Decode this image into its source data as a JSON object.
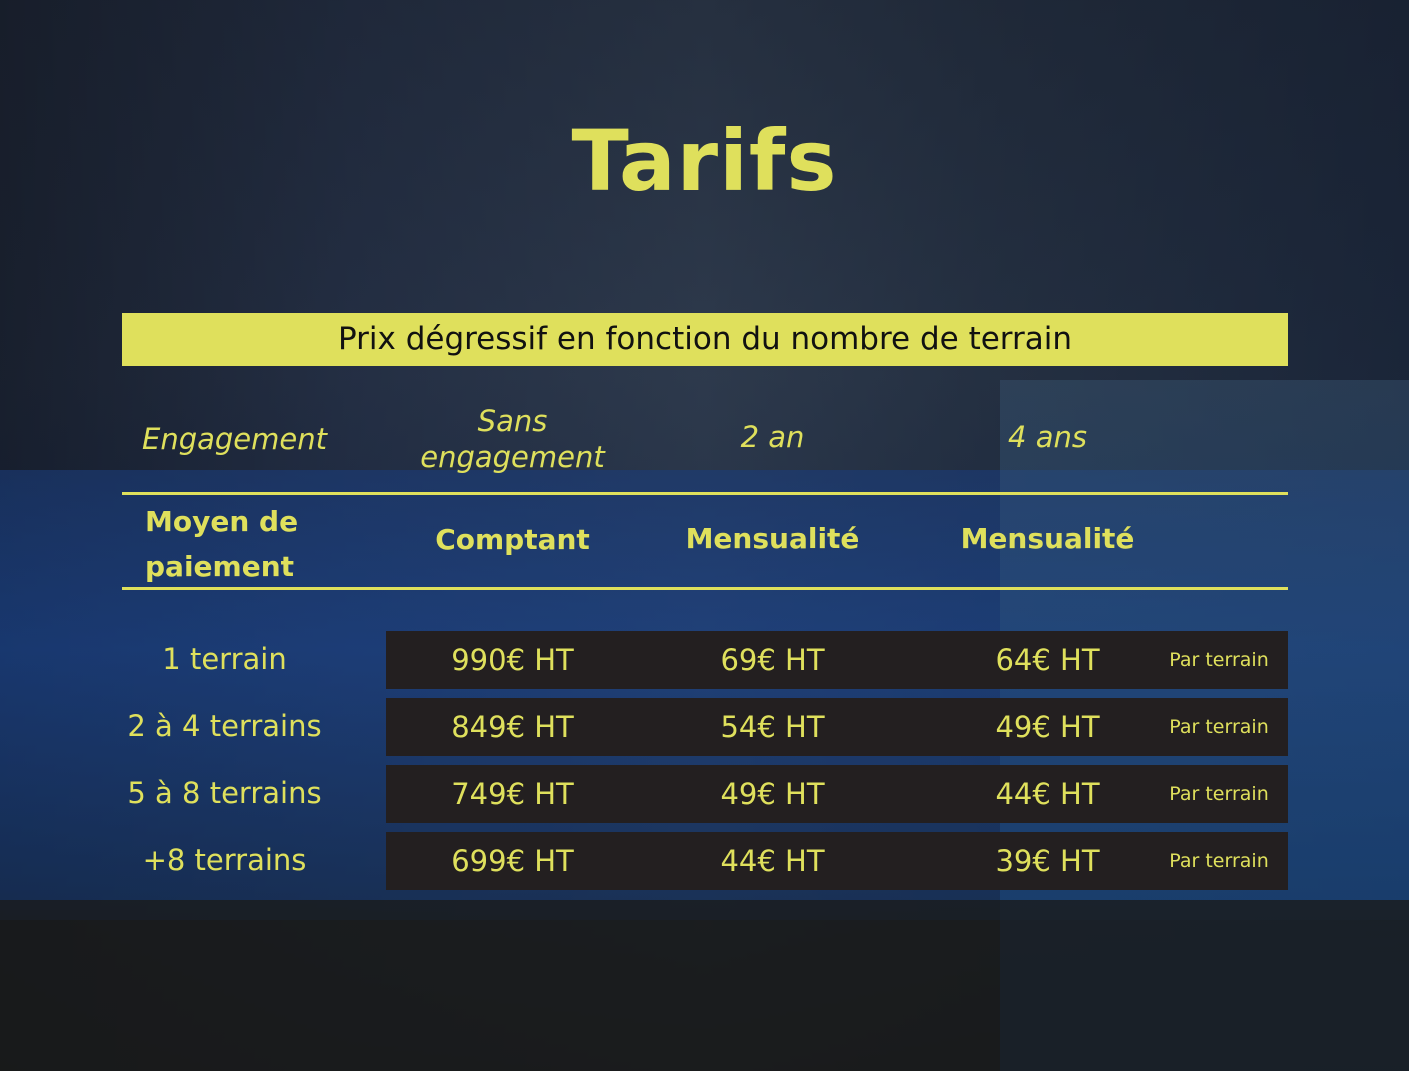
{
  "title": "Tarifs",
  "banner": "Prix dégressif en fonction du nombre de terrain",
  "header": {
    "engagement_label": "Engagement",
    "engagements": [
      "Sans engagement",
      "2 an",
      "4 ans"
    ],
    "payment_label": "Moyen de paiement",
    "payments": [
      "Comptant",
      "Mensualité",
      "Mensualité"
    ]
  },
  "rows": [
    {
      "label": "1 terrain",
      "cash": "990€ HT",
      "m2": "69€ HT",
      "m4": "64€ HT",
      "note": "Par terrain"
    },
    {
      "label": "2 à 4 terrains",
      "cash": "849€ HT",
      "m2": "54€ HT",
      "m4": "49€ HT",
      "note": "Par terrain"
    },
    {
      "label": "5 à 8 terrains",
      "cash": "749€ HT",
      "m2": "49€ HT",
      "m4": "44€ HT",
      "note": "Par terrain"
    },
    {
      "label": "+8 terrains",
      "cash": "699€ HT",
      "m2": "44€ HT",
      "m4": "39€ HT",
      "note": "Par terrain"
    }
  ],
  "colors": {
    "accent": "#dfe05c",
    "row_bg": "#231f20"
  }
}
